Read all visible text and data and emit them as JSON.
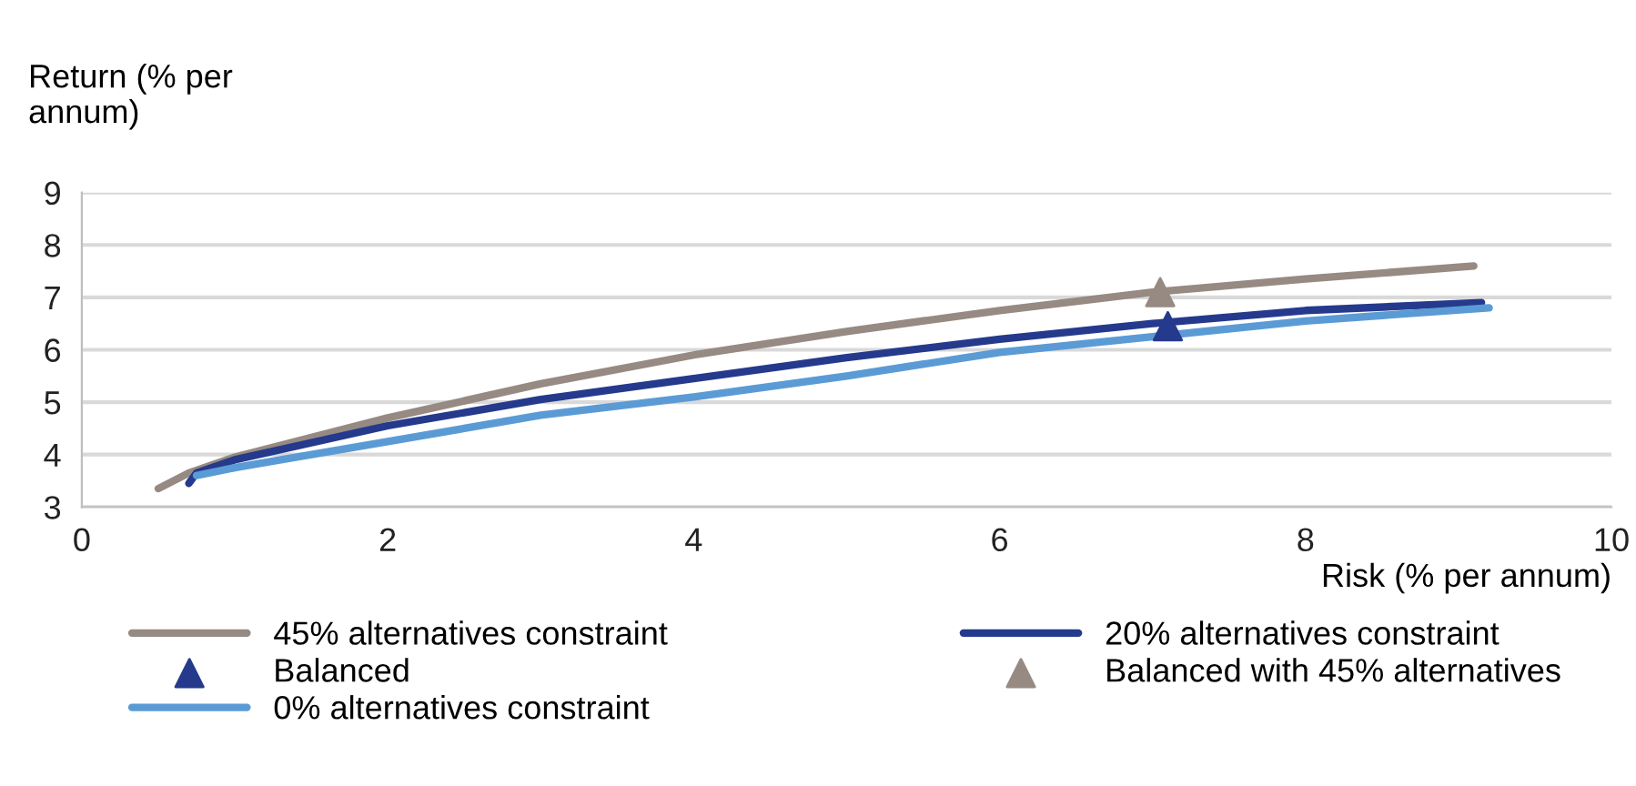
{
  "chart_data": {
    "type": "line",
    "xlabel": "Risk (% per annum)",
    "ylabel": "Return (% per\nannum)",
    "xlim": [
      0,
      10
    ],
    "xticks": [
      0,
      2,
      4,
      6,
      8,
      10
    ],
    "ylim": [
      3,
      9
    ],
    "yticks": [
      3,
      4,
      5,
      6,
      7,
      8,
      9
    ],
    "grid": "y",
    "legend": "bottom",
    "marker": "none",
    "line_style": "solid",
    "series": [
      {
        "name": "45% alternatives constraint",
        "color": "#968a83",
        "x": [
          0.5,
          0.7,
          1,
          2,
          3,
          4,
          5,
          6,
          7,
          8,
          9.1
        ],
        "values": [
          3.35,
          3.65,
          3.95,
          4.7,
          5.35,
          5.9,
          6.35,
          6.75,
          7.1,
          7.35,
          7.6
        ]
      },
      {
        "name": "20% alternatives constraint",
        "color": "#253a8c",
        "x": [
          0.7,
          0.75,
          1,
          2,
          3,
          4,
          5,
          6,
          7,
          8,
          9.15
        ],
        "values": [
          3.45,
          3.65,
          3.9,
          4.55,
          5.05,
          5.45,
          5.85,
          6.2,
          6.5,
          6.75,
          6.9
        ]
      },
      {
        "name": "Balanced",
        "type": "scatter",
        "marker": "triangle",
        "color": "#253a8c",
        "x": [
          7.1
        ],
        "values": [
          6.45
        ]
      },
      {
        "name": "Balanced with 45% alternatives",
        "type": "scatter",
        "marker": "triangle",
        "color": "#968a83",
        "x": [
          7.05
        ],
        "values": [
          7.1
        ]
      },
      {
        "name": "0% alternatives constraint",
        "color": "#5b9bd5",
        "x": [
          0.75,
          1,
          2,
          3,
          4,
          5,
          6,
          7,
          8,
          9.2
        ],
        "values": [
          3.6,
          3.75,
          4.25,
          4.75,
          5.1,
          5.5,
          5.95,
          6.25,
          6.55,
          6.8
        ]
      }
    ]
  }
}
